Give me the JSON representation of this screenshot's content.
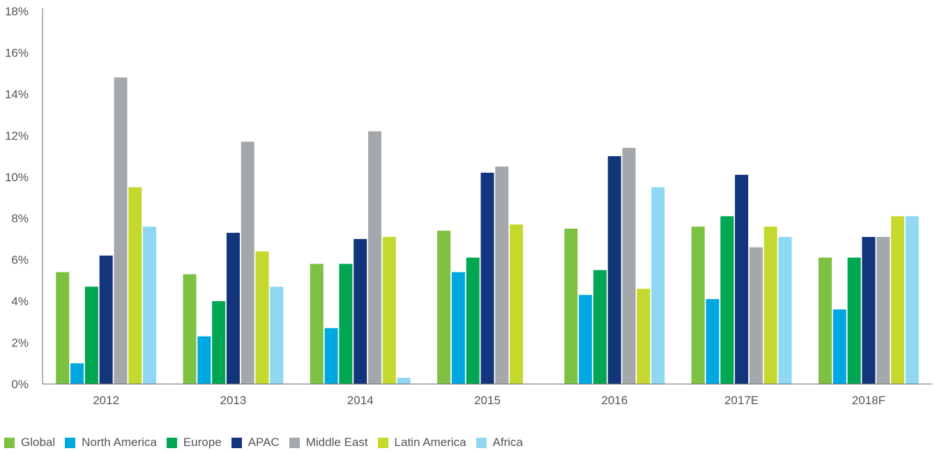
{
  "chart_data": {
    "type": "bar",
    "categories": [
      "2012",
      "2013",
      "2014",
      "2015",
      "2016",
      "2017E",
      "2018F"
    ],
    "y_ticks": [
      "0%",
      "2%",
      "4%",
      "6%",
      "8%",
      "10%",
      "12%",
      "14%",
      "16%",
      "18%"
    ],
    "ylim": [
      0,
      18
    ],
    "grid": false,
    "legend_position": "bottom-left",
    "series": [
      {
        "name": "Global",
        "color": "#7dc142",
        "values": [
          5.4,
          5.3,
          5.8,
          7.4,
          7.5,
          7.6,
          6.1
        ]
      },
      {
        "name": "North America",
        "color": "#00a8e1",
        "values": [
          1.0,
          2.3,
          2.7,
          5.4,
          4.3,
          4.1,
          3.6
        ]
      },
      {
        "name": "Europe",
        "color": "#00a651",
        "values": [
          4.7,
          4.0,
          5.8,
          6.1,
          5.5,
          8.1,
          6.1
        ]
      },
      {
        "name": "APAC",
        "color": "#13357b",
        "values": [
          6.2,
          7.3,
          7.0,
          10.2,
          11.0,
          10.1,
          7.1
        ]
      },
      {
        "name": "Middle East",
        "color": "#a5a8aa",
        "values": [
          14.8,
          11.7,
          12.2,
          10.5,
          11.4,
          6.6,
          7.1
        ]
      },
      {
        "name": "Latin America",
        "color": "#c4d82e",
        "values": [
          9.5,
          6.4,
          7.1,
          7.7,
          4.6,
          7.6,
          8.1
        ]
      },
      {
        "name": "Africa",
        "color": "#8fd8f4",
        "values": [
          7.6,
          4.7,
          0.3,
          null,
          9.5,
          7.1,
          8.1
        ]
      }
    ]
  }
}
